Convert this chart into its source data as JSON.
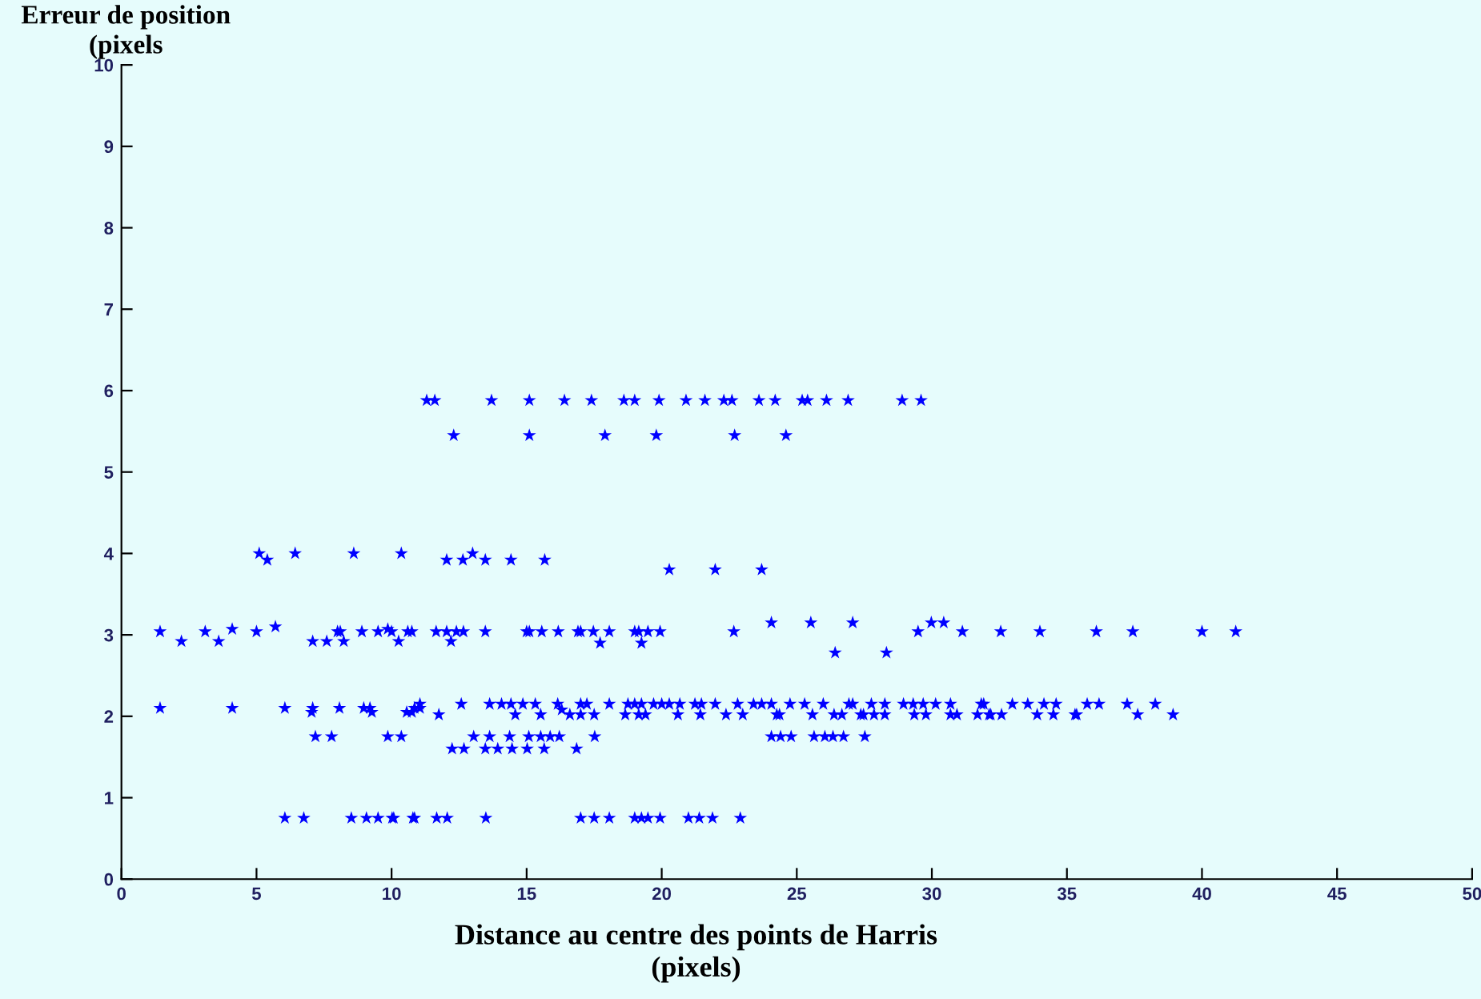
{
  "chart_data": {
    "type": "scatter",
    "ylabel": "Erreur de position\n(pixels",
    "xlabel": "Distance au centre des points de Harris\n(pixels)",
    "xlim": [
      0,
      50
    ],
    "xticks": [
      0,
      5,
      10,
      15,
      20,
      25,
      30,
      35,
      40,
      45,
      50
    ],
    "ylim": [
      0,
      10
    ],
    "yticks": [
      0,
      1,
      2,
      3,
      4,
      5,
      6,
      7,
      8,
      9,
      10
    ],
    "grid": false,
    "marker": "star",
    "series": [
      {
        "color": "#0000ff",
        "x": [
          11.3,
          11.6,
          13.7,
          15.1,
          16.4,
          17.4,
          18.6,
          19.0,
          19.9,
          20.9,
          21.6,
          22.3,
          22.6,
          23.6,
          24.2,
          25.2,
          25.4,
          26.1,
          26.9,
          28.9,
          29.6,
          12.3,
          15.1,
          17.9,
          19.8,
          22.7,
          24.6,
          5.1,
          6.43,
          8.6,
          10.36,
          13.0,
          5.4,
          12.04,
          12.64,
          13.47,
          14.42,
          15.67,
          20.28,
          21.98,
          23.7,
          1.43,
          3.1,
          4.1,
          5.0,
          8.0,
          8.1,
          8.9,
          9.5,
          9.86,
          10.0,
          10.6,
          10.75,
          11.65,
          12.04,
          12.4,
          12.66,
          13.47,
          15.0,
          15.1,
          15.56,
          16.17,
          16.9,
          17.0,
          17.47,
          18.06,
          19.0,
          19.15,
          19.49,
          19.94,
          22.67,
          29.49,
          31.13,
          32.55,
          34.0,
          36.09,
          37.44,
          40.0,
          41.25,
          5.7,
          24.06,
          25.52,
          27.07,
          29.98,
          30.44,
          2.22,
          3.6,
          7.08,
          7.6,
          8.23,
          10.26,
          12.2,
          17.72,
          19.25,
          26.42,
          28.32,
          1.43,
          4.1,
          6.05,
          7.08,
          8.07,
          8.97,
          9.2,
          10.85,
          11.05,
          16.3,
          7.04,
          9.27,
          10.56,
          10.75,
          11.05,
          12.58,
          13.63,
          14.07,
          14.42,
          14.86,
          15.32,
          16.15,
          17.0,
          17.23,
          18.06,
          18.75,
          19.0,
          19.25,
          19.7,
          20.0,
          20.28,
          20.67,
          21.23,
          21.47,
          21.98,
          22.81,
          23.4,
          23.7,
          24.06,
          24.75,
          25.29,
          25.98,
          26.93,
          27.07,
          27.76,
          28.26,
          28.95,
          29.31,
          29.68,
          30.14,
          30.69,
          31.83,
          31.92,
          32.98,
          33.55,
          34.15,
          34.6,
          35.75,
          36.19,
          37.23,
          38.27,
          11.75,
          14.58,
          15.52,
          16.6,
          17.0,
          17.5,
          18.65,
          19.15,
          19.4,
          20.6,
          21.43,
          22.38,
          23.0,
          24.26,
          24.36,
          25.58,
          26.38,
          26.67,
          27.37,
          27.47,
          27.86,
          28.26,
          29.35,
          29.78,
          30.69,
          30.93,
          31.69,
          32.12,
          32.18,
          32.58,
          33.9,
          34.5,
          35.3,
          35.36,
          37.62,
          38.93,
          7.18,
          7.78,
          9.86,
          10.36,
          13.04,
          13.63,
          14.37,
          15.08,
          15.52,
          15.87,
          16.21,
          17.52,
          24.06,
          24.4,
          24.79,
          25.64,
          26.04,
          26.34,
          26.73,
          27.52,
          12.24,
          12.68,
          13.47,
          13.93,
          14.46,
          15.02,
          15.65,
          16.85,
          6.05,
          6.75,
          8.51,
          9.07,
          9.5,
          10.02,
          10.08,
          10.79,
          10.85,
          11.67,
          12.06,
          13.49,
          17.0,
          17.5,
          18.06,
          19.0,
          19.25,
          19.49,
          19.94,
          20.99,
          21.39,
          21.88,
          22.91
        ],
        "values": [
          5.88,
          5.88,
          5.88,
          5.88,
          5.88,
          5.88,
          5.88,
          5.88,
          5.88,
          5.88,
          5.88,
          5.88,
          5.88,
          5.88,
          5.88,
          5.88,
          5.88,
          5.88,
          5.88,
          5.88,
          5.88,
          5.45,
          5.45,
          5.45,
          5.45,
          5.45,
          5.45,
          4.0,
          4.0,
          4.0,
          4.0,
          4.0,
          3.92,
          3.92,
          3.92,
          3.92,
          3.92,
          3.92,
          3.8,
          3.8,
          3.8,
          3.04,
          3.04,
          3.07,
          3.04,
          3.04,
          3.04,
          3.04,
          3.04,
          3.07,
          3.04,
          3.04,
          3.04,
          3.04,
          3.04,
          3.04,
          3.04,
          3.04,
          3.04,
          3.04,
          3.04,
          3.04,
          3.04,
          3.04,
          3.04,
          3.04,
          3.04,
          3.04,
          3.04,
          3.04,
          3.04,
          3.04,
          3.04,
          3.04,
          3.04,
          3.04,
          3.04,
          3.04,
          3.04,
          3.1,
          3.15,
          3.15,
          3.15,
          3.15,
          3.15,
          2.92,
          2.92,
          2.92,
          2.92,
          2.92,
          2.92,
          2.92,
          2.9,
          2.9,
          2.78,
          2.78,
          2.1,
          2.1,
          2.1,
          2.1,
          2.1,
          2.1,
          2.1,
          2.1,
          2.1,
          2.08,
          2.05,
          2.05,
          2.05,
          2.05,
          2.15,
          2.15,
          2.15,
          2.15,
          2.15,
          2.15,
          2.15,
          2.15,
          2.15,
          2.15,
          2.15,
          2.15,
          2.15,
          2.15,
          2.15,
          2.15,
          2.15,
          2.15,
          2.15,
          2.15,
          2.15,
          2.15,
          2.15,
          2.15,
          2.15,
          2.15,
          2.15,
          2.15,
          2.15,
          2.15,
          2.15,
          2.15,
          2.15,
          2.15,
          2.15,
          2.15,
          2.15,
          2.15,
          2.15,
          2.15,
          2.15,
          2.15,
          2.15,
          2.15,
          2.15,
          2.15,
          2.15,
          2.02,
          2.02,
          2.02,
          2.02,
          2.02,
          2.02,
          2.02,
          2.02,
          2.02,
          2.02,
          2.02,
          2.02,
          2.02,
          2.02,
          2.02,
          2.02,
          2.02,
          2.02,
          2.02,
          2.02,
          2.02,
          2.02,
          2.02,
          2.02,
          2.02,
          2.02,
          2.02,
          2.02,
          2.02,
          2.02,
          2.02,
          2.02,
          2.02,
          2.02,
          2.02,
          2.02,
          1.75,
          1.75,
          1.75,
          1.75,
          1.75,
          1.75,
          1.75,
          1.75,
          1.75,
          1.75,
          1.75,
          1.75,
          1.75,
          1.75,
          1.75,
          1.75,
          1.75,
          1.75,
          1.75,
          1.75,
          1.6,
          1.6,
          1.6,
          1.6,
          1.6,
          1.6,
          1.6,
          1.6,
          0.75,
          0.75,
          0.75,
          0.75,
          0.75,
          0.75,
          0.75,
          0.75,
          0.75,
          0.75,
          0.75,
          0.75,
          0.75,
          0.75,
          0.75,
          0.75,
          0.75,
          0.75,
          0.75,
          0.75,
          0.75,
          0.75,
          0.75
        ]
      }
    ]
  }
}
